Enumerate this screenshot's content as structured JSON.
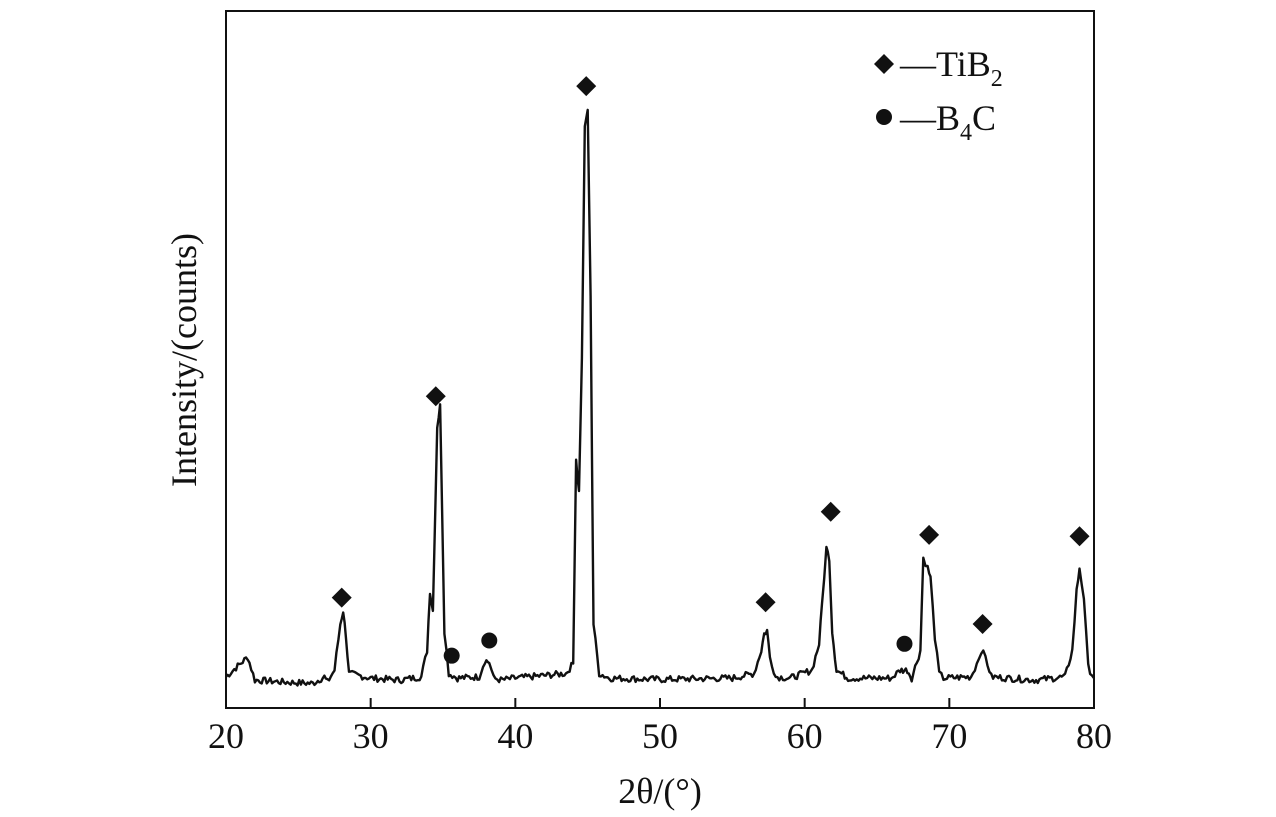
{
  "chart_data": {
    "type": "line",
    "title": "",
    "xlabel": "2θ/(°)",
    "ylabel": "Intensity/(counts)",
    "xlim": [
      20,
      80
    ],
    "ylim": [
      0,
      100
    ],
    "x_ticks": [
      "20",
      "30",
      "40",
      "50",
      "60",
      "70",
      "80"
    ],
    "y_ticks_shown": false,
    "grid": false,
    "line_color": "#111111",
    "legend": {
      "position": "top-right",
      "entries": [
        {
          "marker": "diamond",
          "label": "—TiB",
          "subscript": "2"
        },
        {
          "marker": "circle",
          "label": "—B",
          "subscript": "4",
          "suffix": "C"
        }
      ]
    },
    "series": [
      {
        "x": [
          20,
          21.5,
          22,
          24,
          26,
          26.8,
          27,
          27.5,
          27.9,
          28.1,
          28.3,
          28.5,
          30,
          32,
          33.5,
          33.9,
          34.1,
          34.3,
          34.6,
          34.8,
          35.1,
          35.4,
          36,
          37.5,
          37.9,
          38.2,
          38.5,
          39,
          40,
          42,
          43.5,
          44,
          44.2,
          44.4,
          44.6,
          44.8,
          45,
          45.2,
          45.4,
          45.8,
          46.5,
          50,
          55,
          56.5,
          57,
          57.2,
          57.4,
          57.6,
          58,
          59,
          60.5,
          61,
          61.2,
          61.5,
          61.7,
          61.9,
          62.2,
          63,
          66,
          66.6,
          66.9,
          67.1,
          67.4,
          68,
          68.2,
          68.5,
          68.7,
          69,
          69.3,
          69.6,
          71.5,
          71.9,
          72.2,
          72.5,
          72.9,
          74,
          76,
          78,
          78.5,
          78.8,
          79,
          79.3,
          79.6,
          80
        ],
        "y": [
          2,
          5,
          1.5,
          1.2,
          1.0,
          2,
          1.2,
          3,
          10,
          12,
          8,
          2.5,
          1.8,
          1.5,
          2,
          6,
          15,
          12,
          40,
          43,
          9,
          2.5,
          1.8,
          2,
          4.5,
          4.2,
          1.8,
          1.5,
          1.8,
          2.2,
          2.5,
          4,
          35,
          30,
          50,
          85,
          88,
          60,
          10,
          2.5,
          1.8,
          1.6,
          1.8,
          2.5,
          6,
          8.5,
          9,
          5,
          2,
          1.8,
          3,
          7,
          13,
          21.5,
          20,
          9,
          3,
          1.8,
          1.8,
          3,
          3,
          3,
          1.8,
          6,
          20,
          18.5,
          17,
          8,
          2.5,
          1.8,
          2,
          4,
          6,
          5,
          2,
          1.8,
          1.5,
          2,
          6,
          15,
          18.5,
          14,
          3.5,
          1.8
        ]
      }
    ],
    "annotations": [
      {
        "phase": "TiB2",
        "marker": "diamond",
        "x": 28.0,
        "y": 14
      },
      {
        "phase": "TiB2",
        "marker": "diamond",
        "x": 34.5,
        "y": 44.5
      },
      {
        "phase": "TiB2",
        "marker": "diamond",
        "x": 44.9,
        "y": 91.5
      },
      {
        "phase": "TiB2",
        "marker": "diamond",
        "x": 57.3,
        "y": 13.3
      },
      {
        "phase": "TiB2",
        "marker": "diamond",
        "x": 61.8,
        "y": 27
      },
      {
        "phase": "TiB2",
        "marker": "diamond",
        "x": 68.6,
        "y": 23.5
      },
      {
        "phase": "TiB2",
        "marker": "diamond",
        "x": 72.3,
        "y": 10
      },
      {
        "phase": "TiB2",
        "marker": "diamond",
        "x": 79.0,
        "y": 23.3
      },
      {
        "phase": "B4C",
        "marker": "circle",
        "x": 35.6,
        "y": 5.2
      },
      {
        "phase": "B4C",
        "marker": "circle",
        "x": 38.2,
        "y": 7.5
      },
      {
        "phase": "B4C",
        "marker": "circle",
        "x": 66.9,
        "y": 7.0
      }
    ]
  }
}
